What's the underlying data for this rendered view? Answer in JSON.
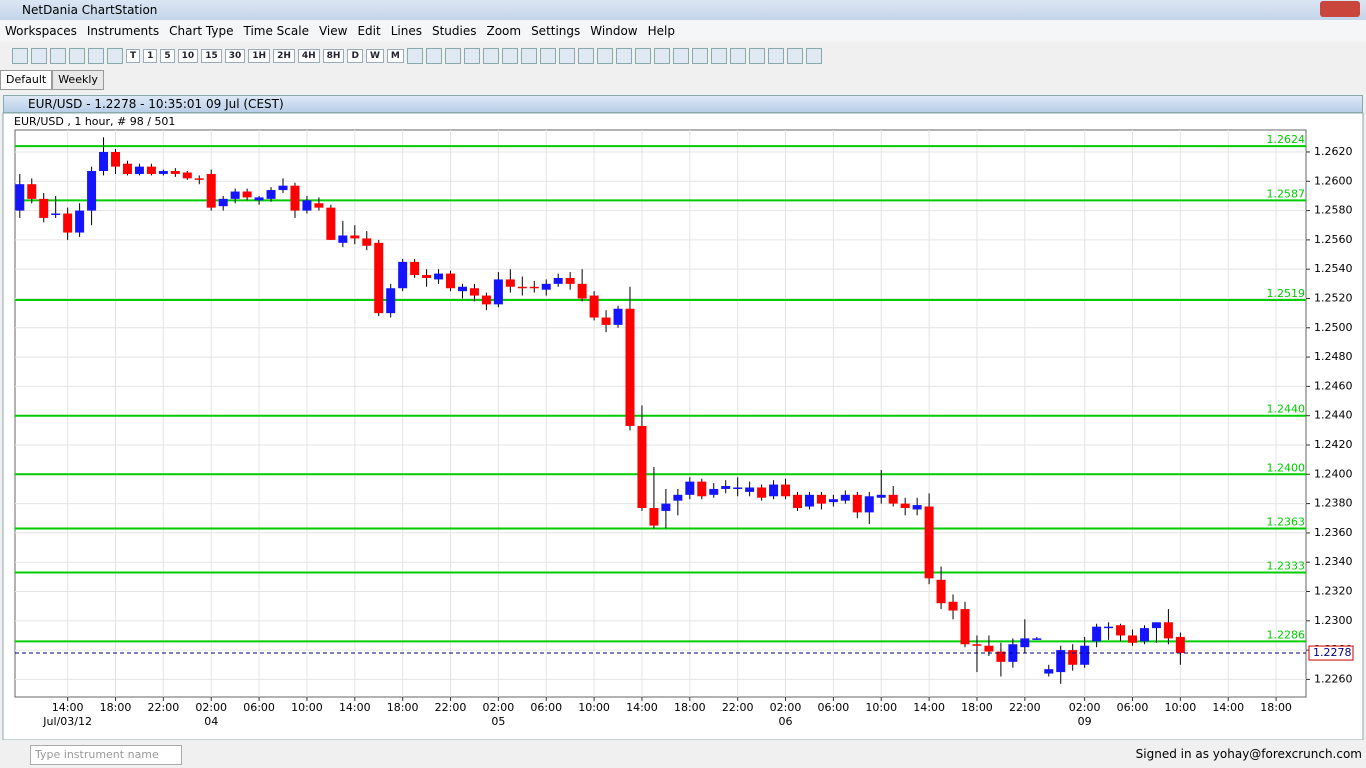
{
  "app_title": "NetDania ChartStation",
  "menu": [
    "Workspaces",
    "Instruments",
    "Chart Type",
    "Time Scale",
    "View",
    "Edit",
    "Lines",
    "Studies",
    "Zoom",
    "Settings",
    "Window",
    "Help"
  ],
  "toolbar_buttons": [
    "T",
    "1",
    "5",
    "10",
    "15",
    "30",
    "1H",
    "2H",
    "4H",
    "8H",
    "D",
    "W",
    "M"
  ],
  "tabs": [
    "Default",
    "Weekly"
  ],
  "chart_window_title": "EUR/USD - 1.2278 - 10:35:01  09 Jul (CEST)",
  "status": {
    "search_placeholder": "Type instrument name",
    "signed_in": "Signed in as yohay@forexcrunch.com"
  },
  "chart_data": {
    "type": "candlestick",
    "title": "EUR/USD , 1 hour, # 98 / 501",
    "up_color": "#1414ff",
    "down_color": "#ff0000",
    "level_color": "#00cc00",
    "current_color": "#000080",
    "open": [
      1.258,
      1.2598,
      1.2588,
      1.2578,
      1.2578,
      1.2565,
      1.258,
      1.2607,
      1.262,
      1.2612,
      1.2605,
      1.261,
      1.2605,
      1.2607,
      1.2606,
      1.2602,
      1.2605,
      1.2583,
      1.2588,
      1.2593,
      1.2587,
      1.2588,
      1.2594,
      1.2597,
      1.258,
      1.2585,
      1.2582,
      1.2558,
      1.2563,
      1.2561,
      1.2558,
      1.251,
      1.2527,
      1.2545,
      1.2536,
      1.2533,
      1.2537,
      1.2525,
      1.2527,
      1.2522,
      1.2516,
      1.2533,
      1.2528,
      1.2528,
      1.2526,
      1.253,
      1.2534,
      1.253,
      1.2522,
      1.2507,
      1.2502,
      1.2513,
      1.2433,
      1.2377,
      1.2375,
      1.2382,
      1.2386,
      1.2395,
      1.2386,
      1.239,
      1.239,
      1.2388,
      1.2391,
      1.2385,
      1.2393,
      1.2386,
      1.2378,
      1.2386,
      1.2381,
      1.2382,
      1.2386,
      1.2374,
      1.2384,
      1.2386,
      1.238,
      1.2376,
      1.2378,
      1.2328,
      1.2313,
      1.2308,
      1.2284,
      1.2283,
      1.2279,
      1.2272,
      1.2282,
      1.2288,
      1.2264,
      1.2265,
      1.228,
      1.227,
      1.2286,
      1.2295,
      1.2297,
      1.229,
      1.2286,
      1.2295,
      1.2299,
      1.2289
    ],
    "high": [
      1.2605,
      1.2602,
      1.2592,
      1.259,
      1.2582,
      1.2585,
      1.261,
      1.263,
      1.2622,
      1.2614,
      1.2612,
      1.2612,
      1.2608,
      1.2609,
      1.2607,
      1.2604,
      1.2608,
      1.259,
      1.2595,
      1.2595,
      1.259,
      1.2596,
      1.2602,
      1.2599,
      1.259,
      1.2589,
      1.2584,
      1.2573,
      1.257,
      1.2566,
      1.256,
      1.253,
      1.2547,
      1.2547,
      1.254,
      1.254,
      1.2539,
      1.253,
      1.253,
      1.2524,
      1.2538,
      1.254,
      1.2535,
      1.2532,
      1.2533,
      1.2537,
      1.2538,
      1.254,
      1.2525,
      1.2512,
      1.2515,
      1.2528,
      1.2447,
      1.2405,
      1.239,
      1.239,
      1.2398,
      1.2397,
      1.2394,
      1.2396,
      1.2398,
      1.2395,
      1.2393,
      1.2396,
      1.2397,
      1.2388,
      1.2388,
      1.2388,
      1.2386,
      1.2389,
      1.2388,
      1.2388,
      1.2403,
      1.2392,
      1.2384,
      1.2384,
      1.2387,
      1.2337,
      1.2318,
      1.2313,
      1.229,
      1.229,
      1.2285,
      1.2288,
      1.2301,
      1.2289,
      1.227,
      1.2283,
      1.2284,
      1.2289,
      1.2298,
      1.2299,
      1.2298,
      1.2294,
      1.2297,
      1.2299,
      1.2308,
      1.2292
    ],
    "low": [
      1.2575,
      1.2585,
      1.2572,
      1.2575,
      1.256,
      1.2562,
      1.257,
      1.2604,
      1.2605,
      1.2604,
      1.2604,
      1.2604,
      1.2604,
      1.2603,
      1.2601,
      1.2598,
      1.258,
      1.258,
      1.2585,
      1.2587,
      1.2584,
      1.2586,
      1.2592,
      1.2575,
      1.2578,
      1.258,
      1.256,
      1.2555,
      1.2557,
      1.2553,
      1.2508,
      1.2507,
      1.2525,
      1.2534,
      1.2528,
      1.253,
      1.2525,
      1.252,
      1.2518,
      1.2512,
      1.2514,
      1.2524,
      1.2522,
      1.2524,
      1.2522,
      1.2528,
      1.2526,
      1.2518,
      1.2505,
      1.2497,
      1.25,
      1.243,
      1.2375,
      1.2363,
      1.2363,
      1.2372,
      1.2383,
      1.2383,
      1.2384,
      1.2387,
      1.2385,
      1.2385,
      1.2382,
      1.2383,
      1.2383,
      1.2375,
      1.2376,
      1.2376,
      1.2378,
      1.238,
      1.237,
      1.2366,
      1.238,
      1.2378,
      1.2372,
      1.2372,
      1.2325,
      1.2308,
      1.2301,
      1.2282,
      1.2265,
      1.2276,
      1.2262,
      1.2268,
      1.2278,
      1.2287,
      1.2262,
      1.2257,
      1.2266,
      1.2268,
      1.2282,
      1.2287,
      1.2286,
      1.2283,
      1.2284,
      1.2285,
      1.2284,
      1.227
    ],
    "close": [
      1.2598,
      1.2588,
      1.2575,
      1.2578,
      1.2565,
      1.258,
      1.2607,
      1.262,
      1.261,
      1.2605,
      1.261,
      1.2605,
      1.2607,
      1.2605,
      1.2602,
      1.2601,
      1.2582,
      1.2588,
      1.2593,
      1.2589,
      1.2589,
      1.2594,
      1.2597,
      1.258,
      1.2587,
      1.2582,
      1.256,
      1.2563,
      1.2561,
      1.2556,
      1.251,
      1.2527,
      1.2545,
      1.2536,
      1.2534,
      1.2537,
      1.2527,
      1.2528,
      1.2522,
      1.2516,
      1.2533,
      1.2528,
      1.2527,
      1.2527,
      1.253,
      1.2534,
      1.253,
      1.252,
      1.2507,
      1.2502,
      1.2513,
      1.2433,
      1.2377,
      1.2365,
      1.238,
      1.2386,
      1.2395,
      1.2385,
      1.239,
      1.2392,
      1.2391,
      1.2391,
      1.2384,
      1.2393,
      1.2385,
      1.2377,
      1.2386,
      1.238,
      1.2383,
      1.2386,
      1.2374,
      1.2385,
      1.2386,
      1.238,
      1.2377,
      1.2379,
      1.2329,
      1.2312,
      1.2307,
      1.2284,
      1.2283,
      1.2279,
      1.2272,
      1.2284,
      1.2288,
      1.2288,
      1.2267,
      1.228,
      1.227,
      1.2283,
      1.2296,
      1.2296,
      1.229,
      1.2285,
      1.2295,
      1.2299,
      1.2288,
      1.2278
    ],
    "levels": [
      {
        "value": 1.2624,
        "label": "1.2624"
      },
      {
        "value": 1.2587,
        "label": "1.2587"
      },
      {
        "value": 1.2519,
        "label": "1.2519"
      },
      {
        "value": 1.244,
        "label": "1.2440"
      },
      {
        "value": 1.24,
        "label": "1.2400"
      },
      {
        "value": 1.2363,
        "label": "1.2363"
      },
      {
        "value": 1.2333,
        "label": "1.2333"
      },
      {
        "value": 1.2286,
        "label": "1.2286"
      }
    ],
    "current": {
      "value": 1.2278,
      "label": "1.2278"
    },
    "ylim": [
      1.2248,
      1.2635
    ],
    "yticks": [
      {
        "value": 1.226,
        "label": "1.2260"
      },
      {
        "value": 1.228,
        "label": "1.2280"
      },
      {
        "value": 1.23,
        "label": "1.2300"
      },
      {
        "value": 1.232,
        "label": "1.2320"
      },
      {
        "value": 1.234,
        "label": "1.2340"
      },
      {
        "value": 1.236,
        "label": "1.2360"
      },
      {
        "value": 1.238,
        "label": "1.2380"
      },
      {
        "value": 1.24,
        "label": "1.2400"
      },
      {
        "value": 1.242,
        "label": "1.2420"
      },
      {
        "value": 1.244,
        "label": "1.2440"
      },
      {
        "value": 1.246,
        "label": "1.2460"
      },
      {
        "value": 1.248,
        "label": "1.2480"
      },
      {
        "value": 1.25,
        "label": "1.2500"
      },
      {
        "value": 1.252,
        "label": "1.2520"
      },
      {
        "value": 1.254,
        "label": "1.2540"
      },
      {
        "value": 1.256,
        "label": "1.2560"
      },
      {
        "value": 1.258,
        "label": "1.2580"
      },
      {
        "value": 1.26,
        "label": "1.2600"
      },
      {
        "value": 1.262,
        "label": "1.2620"
      }
    ],
    "xlim": [
      -0.4,
      107.5
    ],
    "xticks": [
      {
        "value": 4,
        "label": "14:00"
      },
      {
        "value": 8,
        "label": "18:00"
      },
      {
        "value": 12,
        "label": "22:00"
      },
      {
        "value": 16,
        "label": "02:00"
      },
      {
        "value": 20,
        "label": "06:00"
      },
      {
        "value": 24,
        "label": "10:00"
      },
      {
        "value": 28,
        "label": "14:00"
      },
      {
        "value": 32,
        "label": "18:00"
      },
      {
        "value": 36,
        "label": "22:00"
      },
      {
        "value": 40,
        "label": "02:00"
      },
      {
        "value": 44,
        "label": "06:00"
      },
      {
        "value": 48,
        "label": "10:00"
      },
      {
        "value": 52,
        "label": "14:00"
      },
      {
        "value": 56,
        "label": "18:00"
      },
      {
        "value": 60,
        "label": "22:00"
      },
      {
        "value": 64,
        "label": "02:00"
      },
      {
        "value": 68,
        "label": "06:00"
      },
      {
        "value": 72,
        "label": "10:00"
      },
      {
        "value": 76,
        "label": "14:00"
      },
      {
        "value": 80,
        "label": "18:00"
      },
      {
        "value": 84,
        "label": "22:00"
      },
      {
        "value": 89,
        "label": "02:00"
      },
      {
        "value": 93,
        "label": "06:00"
      },
      {
        "value": 97,
        "label": "10:00"
      },
      {
        "value": 101,
        "label": "14:00"
      },
      {
        "value": 105,
        "label": "18:00"
      }
    ],
    "date_ticks": [
      {
        "value": 4,
        "label": "Jul/03/12"
      },
      {
        "value": 16,
        "label": "04"
      },
      {
        "value": 40,
        "label": "05"
      },
      {
        "value": 64,
        "label": "06"
      },
      {
        "value": 89,
        "label": "09"
      }
    ],
    "grid": true
  }
}
